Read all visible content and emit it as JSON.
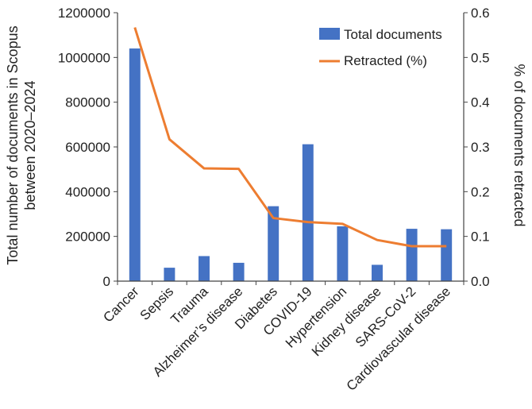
{
  "chart_data": {
    "type": "bar",
    "categories": [
      "Cancer",
      "Sepsis",
      "Trauma",
      "Alzheimer’s disease",
      "Diabetes",
      "COVID-19",
      "Hypertension",
      "Kidney disease",
      "SARS-CoV-2",
      "Cardiovascular disease"
    ],
    "series": [
      {
        "name": "Total documents",
        "type": "bar",
        "axis": "left",
        "color": "#4472C4",
        "values": [
          1040000,
          60000,
          112000,
          82000,
          335000,
          612000,
          245000,
          73000,
          234000,
          232000
        ]
      },
      {
        "name": "Retracted (%)",
        "type": "line",
        "axis": "right",
        "color": "#ED7D31",
        "values": [
          0.567,
          0.317,
          0.252,
          0.251,
          0.141,
          0.132,
          0.128,
          0.092,
          0.078,
          0.078
        ]
      }
    ],
    "ylabel_lines": [
      "Total number of documents in Scopus",
      "between 2020–2024"
    ],
    "y2label": "% of documents retracted",
    "ylim": [
      0,
      1200000
    ],
    "y_ticks": [
      "0",
      "200000",
      "400000",
      "600000",
      "800000",
      "1000000",
      "1200000"
    ],
    "y2lim": [
      0,
      0.6
    ],
    "y2_ticks": [
      "0.0",
      "0.1",
      "0.2",
      "0.3",
      "0.4",
      "0.5",
      "0.6"
    ],
    "grid": false,
    "legend_position": "top-right"
  }
}
